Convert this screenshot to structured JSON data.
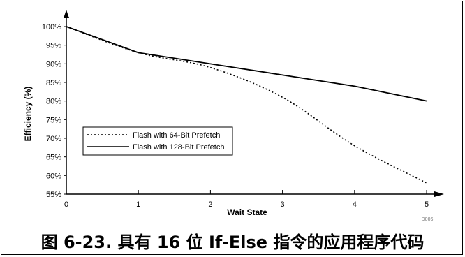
{
  "chart_data": {
    "type": "line",
    "xlabel": "Wait State",
    "ylabel": "Efficiency (%)",
    "x": [
      0,
      1,
      2,
      3,
      4,
      5
    ],
    "xlim": [
      0,
      5
    ],
    "ylim": [
      55,
      100
    ],
    "x_ticks": [
      "0",
      "1",
      "2",
      "3",
      "4",
      "5"
    ],
    "y_ticks": [
      "55%",
      "60%",
      "65%",
      "70%",
      "75%",
      "80%",
      "85%",
      "90%",
      "95%",
      "100%"
    ],
    "grid": false,
    "legend_position": "left-middle",
    "series": [
      {
        "name": "Flash with 64-Bit Prefetch",
        "style": "dotted",
        "values": [
          100,
          93,
          89,
          81,
          68,
          58
        ]
      },
      {
        "name": "Flash with 128-Bit Prefetch",
        "style": "solid",
        "values": [
          100,
          93,
          90,
          87,
          84,
          80
        ]
      }
    ],
    "figure_code": "D006"
  },
  "caption": "图 6-23. 具有 16 位 If-Else 指令的应用程序代码"
}
